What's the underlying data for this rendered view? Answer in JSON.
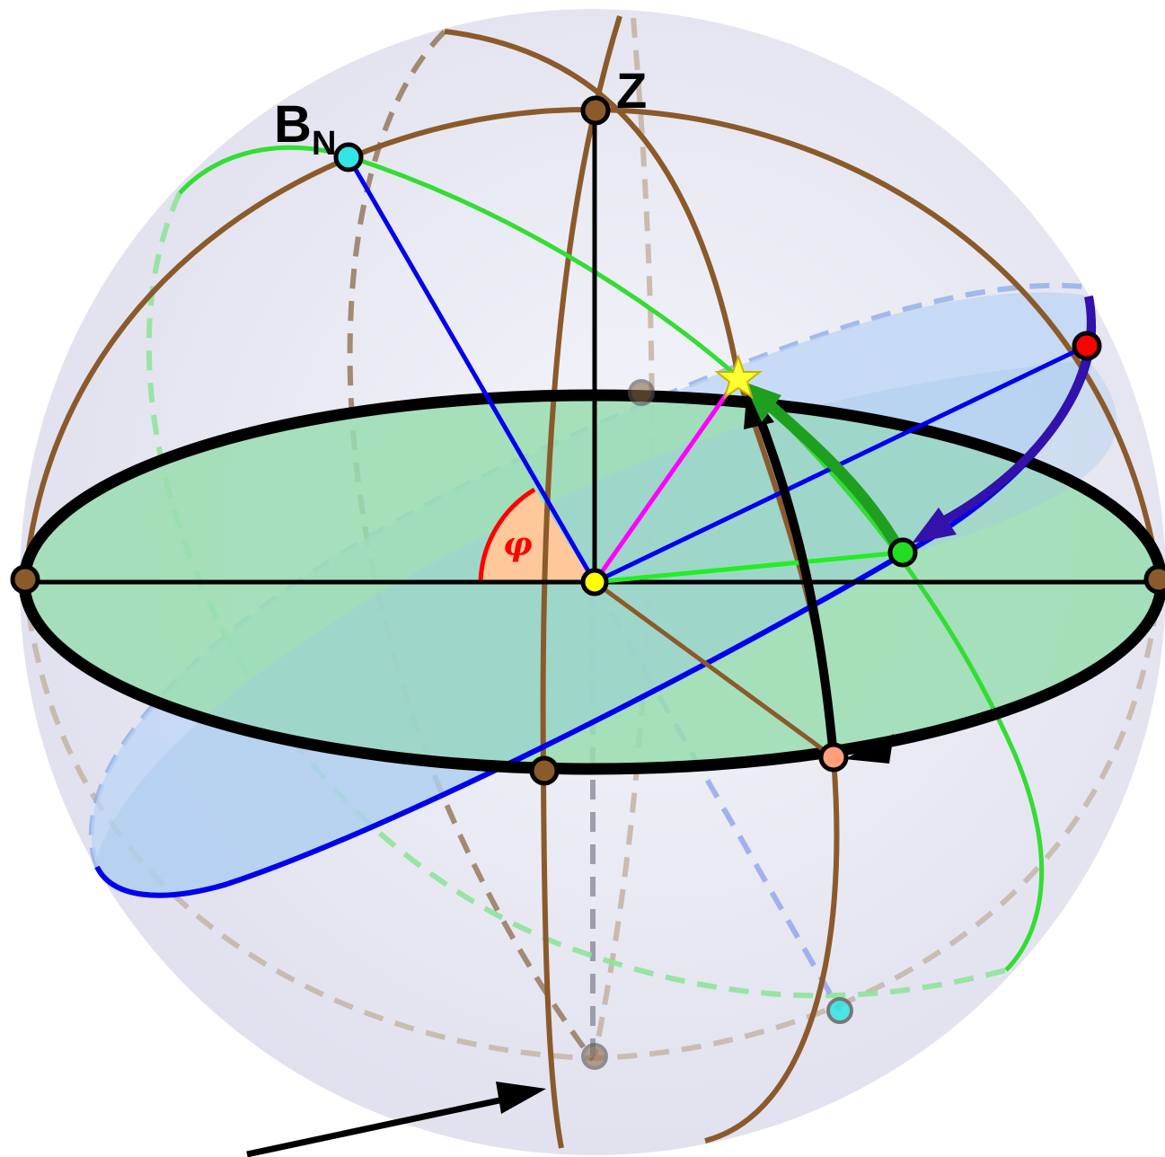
{
  "labels": {
    "zenith": "Z",
    "celestial_pole": "B",
    "celestial_pole_sub": "N",
    "latitude_angle": "φ"
  },
  "colors": {
    "meridian": "#8B5A2B",
    "horizon": "#000000",
    "celestial_equator": "#0000EE",
    "ecliptic_circle": "#33DD33",
    "horizon_fill": "#99DDB0",
    "equator_fill": "#BBD4F5",
    "sphere_fill": "#E6E6F2",
    "angle_fill": "#FFC89A",
    "angle_stroke": "#FF0000",
    "star": "#FFFF33",
    "star_ray": "#FF00FF",
    "pole_point": "#33E5E5",
    "rising_point": "#FF0000",
    "observer_point": "#FFFF00",
    "azimuth_point": "#FF9E7A",
    "hour_arrow": "#3311AA",
    "declination_arrow": "#1F9F1F"
  },
  "icons": {
    "star": "star-icon"
  }
}
